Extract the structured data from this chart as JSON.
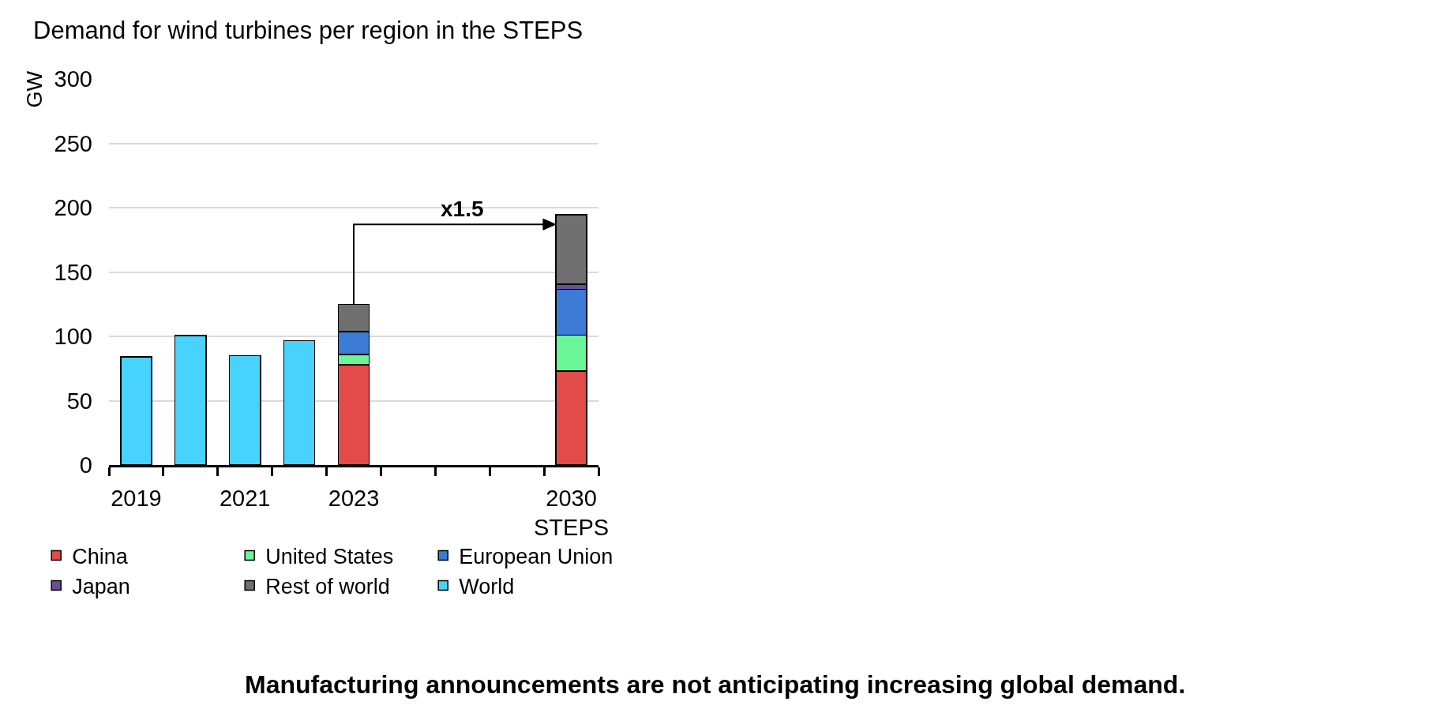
{
  "chart_data": {
    "type": "bar",
    "title": "Demand for wind turbines per region in the STEPS",
    "ylabel": "GW",
    "categories": [
      "2019",
      null,
      "2021",
      null,
      "2023",
      null,
      null,
      null,
      "2030\nSTEPS"
    ],
    "series": [
      {
        "name": "China",
        "color": "#e34a4a",
        "values": [
          null,
          null,
          null,
          null,
          78,
          null,
          null,
          null,
          73
        ]
      },
      {
        "name": "United States",
        "color": "#6af597",
        "values": [
          null,
          null,
          null,
          null,
          8,
          null,
          null,
          null,
          28
        ]
      },
      {
        "name": "European Union",
        "color": "#3c7bd6",
        "values": [
          null,
          null,
          null,
          null,
          17.5,
          null,
          null,
          null,
          35.5
        ]
      },
      {
        "name": "Japan",
        "color": "#6b4c9a",
        "values": [
          null,
          null,
          null,
          null,
          0.5,
          null,
          null,
          null,
          4
        ]
      },
      {
        "name": "Rest of world",
        "color": "#6f706f",
        "values": [
          null,
          null,
          null,
          null,
          21,
          null,
          null,
          null,
          54
        ]
      },
      {
        "name": "World",
        "color": "#47d3fe",
        "values": [
          84,
          100.5,
          85,
          96.5,
          null,
          null,
          null,
          null,
          null
        ]
      }
    ],
    "stacked": true,
    "ylim": [
      0,
      300
    ],
    "yticks": [
      0,
      50,
      100,
      150,
      200,
      250,
      300
    ],
    "grid": "y",
    "legend": "bottom left",
    "annotations": [
      "x1.5",
      "Manufacturing announcements are not anticipating increasing global demand."
    ]
  }
}
